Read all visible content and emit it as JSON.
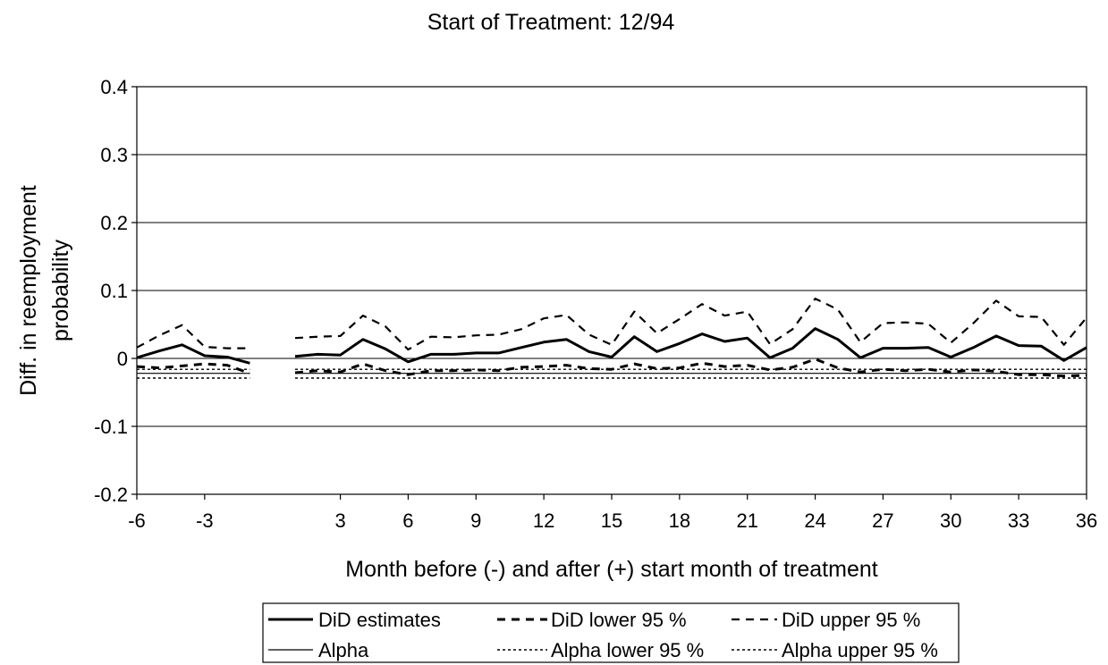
{
  "chart_data": {
    "type": "line",
    "title": "Start of Treatment: 12/94",
    "xlabel": "Month before (-) and after (+) start month of treatment",
    "ylabel_lines": [
      "Diff. in reemployment",
      "probability"
    ],
    "xlim": [
      -6,
      36
    ],
    "ylim": [
      -0.2,
      0.4
    ],
    "xticks": [
      -6,
      -3,
      3,
      6,
      9,
      12,
      15,
      18,
      21,
      24,
      27,
      30,
      33,
      36
    ],
    "xtick_labels": [
      "-6",
      "-3",
      "3",
      "6",
      "9",
      "12",
      "15",
      "18",
      "21",
      "24",
      "27",
      "30",
      "33",
      "36"
    ],
    "yticks": [
      -0.2,
      -0.1,
      0,
      0.1,
      0.2,
      0.3,
      0.4
    ],
    "ytick_labels": [
      "-0.2",
      "-0.1",
      "0",
      "0.1",
      "0.2",
      "0.3",
      "0.4"
    ],
    "grid": "horizontal",
    "legend_position": "bottom",
    "x": [
      -6,
      -5,
      -4,
      -3,
      -2,
      -1,
      0,
      1,
      2,
      3,
      4,
      5,
      6,
      7,
      8,
      9,
      10,
      11,
      12,
      13,
      14,
      15,
      16,
      17,
      18,
      19,
      20,
      21,
      22,
      23,
      24,
      25,
      26,
      27,
      28,
      29,
      30,
      31,
      32,
      33,
      34,
      35,
      36
    ],
    "series": [
      {
        "name": "DiD estimates",
        "values": [
          0.001,
          0.011,
          0.02,
          0.004,
          0.002,
          -0.007,
          null,
          0.003,
          0.006,
          0.005,
          0.028,
          0.014,
          -0.005,
          0.006,
          0.006,
          0.008,
          0.008,
          0.016,
          0.024,
          0.028,
          0.01,
          0.002,
          0.032,
          0.01,
          0.022,
          0.036,
          0.025,
          0.03,
          0.001,
          0.015,
          0.044,
          0.028,
          0.001,
          0.015,
          0.015,
          0.016,
          0.002,
          0.016,
          0.033,
          0.019,
          0.018,
          -0.003,
          0.016
        ]
      },
      {
        "name": "DiD lower 95 %",
        "values": [
          -0.012,
          -0.014,
          -0.011,
          -0.008,
          -0.01,
          -0.022,
          null,
          -0.021,
          -0.018,
          -0.02,
          -0.008,
          -0.018,
          -0.024,
          -0.018,
          -0.018,
          -0.017,
          -0.018,
          -0.013,
          -0.012,
          -0.01,
          -0.015,
          -0.016,
          -0.008,
          -0.015,
          -0.014,
          -0.007,
          -0.012,
          -0.01,
          -0.017,
          -0.013,
          -0.001,
          -0.014,
          -0.02,
          -0.016,
          -0.018,
          -0.016,
          -0.02,
          -0.017,
          -0.019,
          -0.024,
          -0.024,
          -0.026,
          -0.025
        ]
      },
      {
        "name": "DiD upper 95 %",
        "values": [
          0.016,
          0.034,
          0.049,
          0.017,
          0.015,
          0.015,
          null,
          0.03,
          0.032,
          0.033,
          0.063,
          0.047,
          0.013,
          0.032,
          0.031,
          0.034,
          0.035,
          0.043,
          0.059,
          0.064,
          0.035,
          0.02,
          0.069,
          0.037,
          0.058,
          0.08,
          0.063,
          0.069,
          0.021,
          0.043,
          0.088,
          0.072,
          0.024,
          0.052,
          0.053,
          0.051,
          0.023,
          0.052,
          0.085,
          0.062,
          0.061,
          0.02,
          0.06
        ]
      },
      {
        "name": "Alpha",
        "values": [
          -0.022,
          -0.022,
          -0.022,
          -0.022,
          -0.022,
          -0.022,
          null,
          -0.022,
          -0.022,
          -0.022,
          -0.022,
          -0.022,
          -0.022,
          -0.022,
          -0.022,
          -0.022,
          -0.022,
          -0.022,
          -0.022,
          -0.022,
          -0.022,
          -0.022,
          -0.022,
          -0.022,
          -0.022,
          -0.022,
          -0.022,
          -0.022,
          -0.022,
          -0.022,
          -0.022,
          -0.022,
          -0.022,
          -0.022,
          -0.022,
          -0.022,
          -0.022,
          -0.022,
          -0.022,
          -0.022,
          -0.022,
          -0.022,
          -0.022
        ]
      },
      {
        "name": "Alpha lower 95 %",
        "values": [
          -0.029,
          -0.029,
          -0.029,
          -0.029,
          -0.029,
          -0.029,
          null,
          -0.029,
          -0.029,
          -0.029,
          -0.029,
          -0.029,
          -0.029,
          -0.029,
          -0.029,
          -0.029,
          -0.029,
          -0.029,
          -0.029,
          -0.029,
          -0.029,
          -0.029,
          -0.029,
          -0.029,
          -0.029,
          -0.029,
          -0.029,
          -0.029,
          -0.029,
          -0.029,
          -0.029,
          -0.029,
          -0.029,
          -0.029,
          -0.029,
          -0.029,
          -0.029,
          -0.029,
          -0.029,
          -0.029,
          -0.029,
          -0.029,
          -0.029
        ]
      },
      {
        "name": "Alpha upper 95 %",
        "values": [
          -0.016,
          -0.016,
          -0.016,
          -0.016,
          -0.016,
          -0.016,
          null,
          -0.016,
          -0.016,
          -0.016,
          -0.016,
          -0.016,
          -0.016,
          -0.016,
          -0.016,
          -0.016,
          -0.016,
          -0.016,
          -0.016,
          -0.016,
          -0.016,
          -0.016,
          -0.016,
          -0.016,
          -0.016,
          -0.016,
          -0.016,
          -0.016,
          -0.016,
          -0.016,
          -0.016,
          -0.016,
          -0.016,
          -0.016,
          -0.016,
          -0.016,
          -0.016,
          -0.016,
          -0.016,
          -0.016,
          -0.016,
          -0.016,
          -0.016
        ]
      }
    ]
  }
}
